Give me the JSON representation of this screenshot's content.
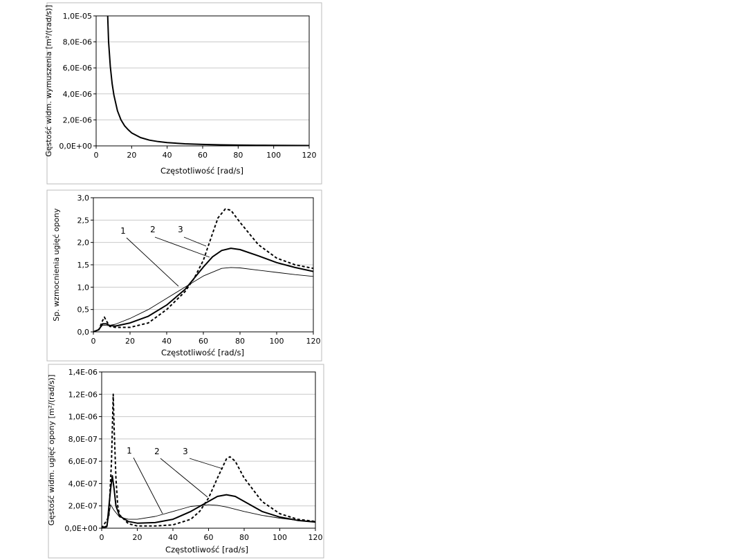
{
  "chart_data": [
    {
      "type": "line",
      "xlabel": "Częstotliwość [rad/s]",
      "ylabel": "Gęstość widm. wymuszenia [m²/(rad/s)]",
      "xlim": [
        0,
        120
      ],
      "ylim": [
        0,
        1e-05
      ],
      "xticks": [
        "0",
        "20",
        "40",
        "60",
        "80",
        "100",
        "120"
      ],
      "yticks": [
        "0,0E+00",
        "2,0E-06",
        "4,0E-06",
        "6,0E-06",
        "8,0E-06",
        "1,0E-05"
      ],
      "grid": "horizontal",
      "series": [
        {
          "style": "thick",
          "x": [
            6.5,
            7,
            8,
            9,
            10,
            12,
            14,
            16,
            18,
            20,
            25,
            30,
            35,
            40,
            50,
            60,
            70,
            80,
            90,
            100,
            110,
            120
          ],
          "y": [
            1e-05,
            8e-06,
            6.1e-06,
            4.8e-06,
            3.9e-06,
            2.7e-06,
            2e-06,
            1.55e-06,
            1.25e-06,
            1e-06,
            6.4e-07,
            4.4e-07,
            3.3e-07,
            2.5e-07,
            1.6e-07,
            1.1e-07,
            8e-08,
            6e-08,
            5e-08,
            4e-08,
            3e-08,
            2.5e-08
          ]
        }
      ]
    },
    {
      "type": "line",
      "xlabel": "Częstotliwość [rad/s]",
      "ylabel": "Sp. wzmocnienia ugięć opony",
      "xlim": [
        0,
        120
      ],
      "ylim": [
        0,
        3.0
      ],
      "xticks": [
        "0",
        "20",
        "40",
        "60",
        "80",
        "100",
        "120"
      ],
      "yticks": [
        "0,0",
        "0,5",
        "1,0",
        "1,5",
        "2,0",
        "2,5",
        "3,0"
      ],
      "grid": "horizontal",
      "callouts": [
        "1",
        "2",
        "3"
      ],
      "series": [
        {
          "callout": "1",
          "style": "thin",
          "x": [
            0,
            3,
            5,
            8,
            12,
            20,
            30,
            40,
            50,
            60,
            70,
            75,
            80,
            90,
            100,
            110,
            120
          ],
          "y": [
            0,
            0.05,
            0.15,
            0.14,
            0.17,
            0.3,
            0.5,
            0.75,
            1.0,
            1.25,
            1.42,
            1.44,
            1.43,
            1.38,
            1.33,
            1.28,
            1.24
          ]
        },
        {
          "callout": "2",
          "style": "thick",
          "x": [
            0,
            3,
            5,
            7,
            9,
            12,
            20,
            30,
            40,
            50,
            55,
            60,
            65,
            70,
            75,
            80,
            90,
            100,
            110,
            120
          ],
          "y": [
            0,
            0.05,
            0.18,
            0.18,
            0.14,
            0.13,
            0.2,
            0.35,
            0.6,
            0.95,
            1.2,
            1.45,
            1.68,
            1.82,
            1.87,
            1.84,
            1.7,
            1.55,
            1.44,
            1.35
          ]
        },
        {
          "callout": "3",
          "style": "dashed",
          "x": [
            0,
            3,
            5,
            6,
            7,
            9,
            12,
            20,
            30,
            40,
            50,
            55,
            60,
            65,
            68,
            72,
            75,
            80,
            90,
            100,
            110,
            120
          ],
          "y": [
            0,
            0.05,
            0.25,
            0.33,
            0.25,
            0.12,
            0.1,
            0.1,
            0.2,
            0.5,
            0.9,
            1.2,
            1.6,
            2.2,
            2.55,
            2.75,
            2.72,
            2.45,
            1.95,
            1.65,
            1.5,
            1.42
          ]
        }
      ]
    },
    {
      "type": "line",
      "xlabel": "Częstotliwość [rad/s]",
      "ylabel": "Gęstość widm. ugięć opony [m²/(rad/s)]",
      "xlim": [
        0,
        120
      ],
      "ylim": [
        0,
        1.4e-06
      ],
      "xticks": [
        "0",
        "20",
        "40",
        "60",
        "80",
        "100",
        "120"
      ],
      "yticks": [
        "0,0E+00",
        "2,0E-07",
        "4,0E-07",
        "6,0E-07",
        "8,0E-07",
        "1,0E-06",
        "1,2E-06",
        "1,4E-06"
      ],
      "grid": "horizontal",
      "callouts": [
        "1",
        "2",
        "3"
      ],
      "series": [
        {
          "callout": "1",
          "style": "thin",
          "x": [
            0,
            3,
            5,
            7,
            10,
            15,
            20,
            30,
            40,
            50,
            60,
            65,
            70,
            80,
            90,
            100,
            110,
            120
          ],
          "y": [
            0,
            1e-08,
            2.1e-07,
            1.6e-07,
            1e-07,
            8e-08,
            8e-08,
            1.05e-07,
            1.5e-07,
            1.95e-07,
            2.1e-07,
            2.05e-07,
            1.9e-07,
            1.5e-07,
            1.15e-07,
            9e-08,
            7e-08,
            6e-08
          ]
        },
        {
          "callout": "2",
          "style": "thick",
          "x": [
            0,
            3,
            5,
            6,
            7,
            8,
            10,
            15,
            20,
            30,
            40,
            50,
            60,
            65,
            70,
            75,
            80,
            90,
            100,
            110,
            120
          ],
          "y": [
            0,
            2e-08,
            3.5e-07,
            4.7e-07,
            3.5e-07,
            2e-07,
            1.1e-07,
            6e-08,
            4.5e-08,
            5e-08,
            8e-08,
            1.5e-07,
            2.4e-07,
            2.85e-07,
            3e-07,
            2.85e-07,
            2.4e-07,
            1.5e-07,
            1e-07,
            7e-08,
            5.5e-08
          ]
        },
        {
          "callout": "3",
          "style": "dashed",
          "x": [
            0,
            4,
            5.5,
            6.5,
            7,
            8,
            9,
            10,
            15,
            20,
            30,
            40,
            50,
            55,
            60,
            65,
            70,
            72,
            75,
            80,
            90,
            100,
            110,
            120
          ],
          "y": [
            0,
            1e-07,
            6e-07,
            1.2e-06,
            9e-07,
            4.5e-07,
            2e-07,
            1.2e-07,
            4e-08,
            2e-08,
            2e-08,
            3e-08,
            8e-08,
            1.5e-07,
            2.7e-07,
            4.5e-07,
            6.2e-07,
            6.4e-07,
            6e-07,
            4.5e-07,
            2.4e-07,
            1.3e-07,
            8e-08,
            6e-08
          ]
        }
      ]
    }
  ]
}
